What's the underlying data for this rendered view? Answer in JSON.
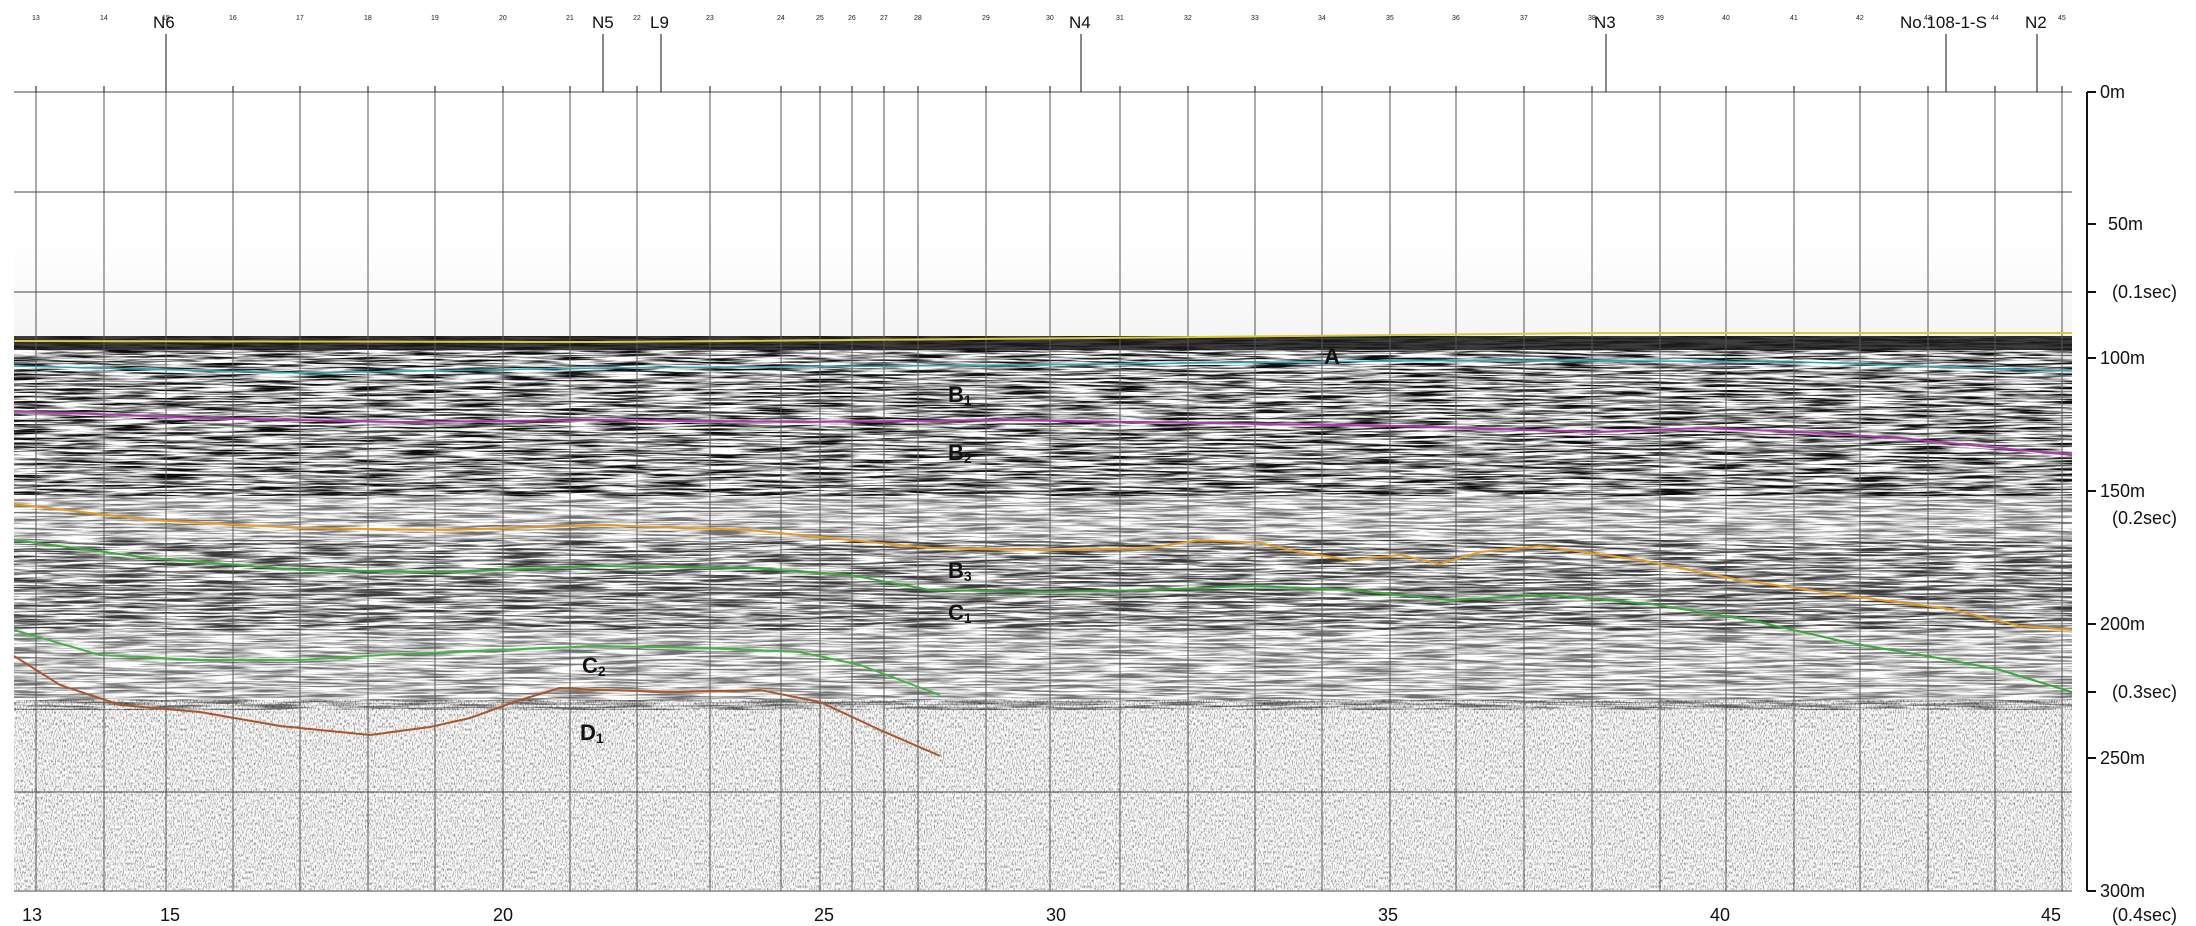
{
  "profile_id": "No.108-1-S",
  "stations": [
    "N6",
    "N5",
    "L9",
    "N4",
    "N3",
    "N2"
  ],
  "shot_points": [
    "13",
    "15",
    "20",
    "25",
    "30",
    "35",
    "40",
    "45"
  ],
  "top_ticks": [
    "13",
    "14",
    "15",
    "16",
    "17",
    "18",
    "19",
    "20",
    "21",
    "22",
    "23",
    "24",
    "25",
    "26",
    "27",
    "28",
    "29",
    "30",
    "31",
    "32",
    "33",
    "34",
    "35",
    "36",
    "37",
    "38",
    "39",
    "40",
    "41",
    "42",
    "43",
    "44",
    "45"
  ],
  "depth_labels": [
    {
      "depth": "0m",
      "time": ""
    },
    {
      "depth": "50m",
      "time": ""
    },
    {
      "depth": "",
      "time": "(0.1sec)"
    },
    {
      "depth": "100m",
      "time": ""
    },
    {
      "depth": "150m",
      "time": "(0.2sec)"
    },
    {
      "depth": "200m",
      "time": ""
    },
    {
      "depth": "",
      "time": "(0.3sec)"
    },
    {
      "depth": "250m",
      "time": ""
    },
    {
      "depth": "300m",
      "time": "(0.4sec)"
    }
  ],
  "horizons": [
    {
      "main": "A",
      "sub": "",
      "color": "#d8c93a"
    },
    {
      "main": "B",
      "sub": "1",
      "color": "#2ba7b8"
    },
    {
      "main": "B",
      "sub": "2",
      "color": "#b235b2"
    },
    {
      "main": "B",
      "sub": "3",
      "color": "#e59a23"
    },
    {
      "main": "C",
      "sub": "1",
      "color": "#3aa83a"
    },
    {
      "main": "C",
      "sub": "2",
      "color": "#44b244"
    },
    {
      "main": "D",
      "sub": "1",
      "color": "#a8562a"
    }
  ]
}
